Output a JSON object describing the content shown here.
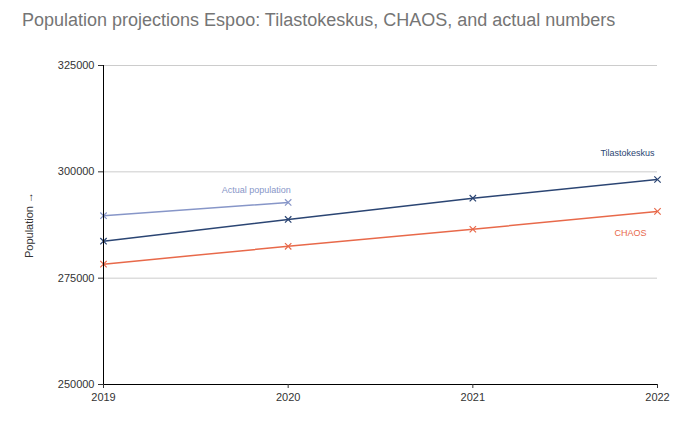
{
  "chart_data": {
    "type": "line",
    "title": "Population projections Espoo: Tilastokeskus, CHAOS, and actual numbers",
    "y_label": "Population",
    "x": [
      2019,
      2020,
      2021,
      2022
    ],
    "series": [
      {
        "name": "Actual population",
        "color": "#8796c8",
        "marker": "x",
        "values": [
          289700,
          292800,
          null,
          null
        ]
      },
      {
        "name": "Tilastokeskus",
        "color": "#2b4573",
        "marker": "x",
        "values": [
          283700,
          288800,
          293800,
          298200
        ]
      },
      {
        "name": "CHAOS",
        "color": "#e8694a",
        "marker": "x",
        "values": [
          278300,
          282500,
          286500,
          290700
        ]
      }
    ],
    "xlim": [
      2019,
      2022
    ],
    "xticks": [
      2019,
      2020,
      2021,
      2022
    ],
    "ylim": [
      250000,
      325000
    ],
    "yticks": [
      250000,
      275000,
      300000,
      325000
    ],
    "grid": true
  }
}
